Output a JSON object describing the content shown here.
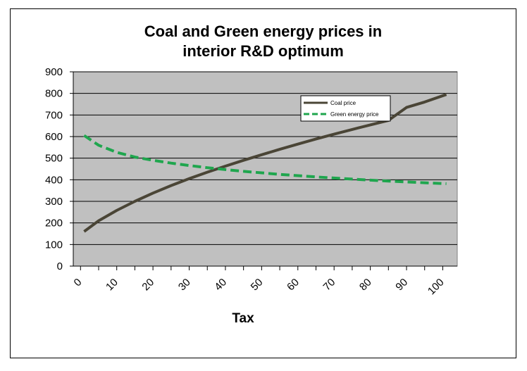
{
  "chart_data": {
    "type": "line",
    "title_lines": [
      "Coal and Green energy prices in",
      "interior R&D optimum"
    ],
    "xlabel": "Tax",
    "ylabel": "",
    "ylim": [
      0,
      900
    ],
    "yticks": [
      0,
      100,
      200,
      300,
      400,
      500,
      600,
      700,
      800,
      900
    ],
    "xlim": [
      -2,
      104
    ],
    "xticks": [
      0,
      10,
      20,
      30,
      40,
      50,
      60,
      70,
      80,
      90,
      100
    ],
    "grid": true,
    "plot_background": "#c0c0c0",
    "legend_position": "upper-right",
    "series": [
      {
        "name": "Coal price",
        "color": "#4a4536",
        "style": "solid",
        "x": [
          1,
          5,
          10,
          15,
          20,
          25,
          30,
          35,
          40,
          45,
          50,
          55,
          60,
          65,
          70,
          75,
          80,
          85,
          90,
          95,
          101
        ],
        "values": [
          160,
          210,
          258,
          300,
          338,
          373,
          405,
          435,
          463,
          490,
          516,
          541,
          565,
          589,
          611,
          633,
          654,
          675,
          735,
          760,
          795
        ]
      },
      {
        "name": "Green energy price",
        "color": "#1fa64e",
        "style": "dashed",
        "x": [
          1,
          5,
          10,
          15,
          20,
          25,
          30,
          35,
          40,
          45,
          50,
          55,
          60,
          65,
          70,
          75,
          80,
          85,
          90,
          95,
          101
        ],
        "values": [
          605,
          560,
          527,
          505,
          490,
          477,
          466,
          456,
          447,
          439,
          432,
          425,
          419,
          413,
          408,
          403,
          398,
          394,
          390,
          386,
          382
        ]
      }
    ]
  }
}
